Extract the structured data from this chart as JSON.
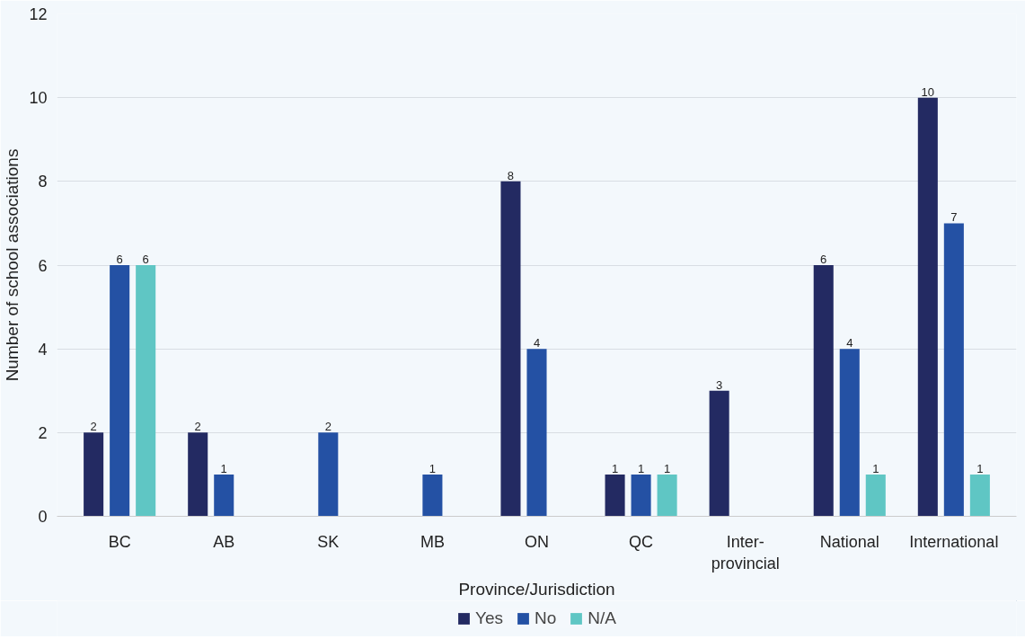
{
  "chart_data": {
    "type": "bar",
    "xlabel": "Province/Jurisdiction",
    "ylabel": "Number of school associations",
    "categories": [
      "BC",
      "AB",
      "SK",
      "MB",
      "ON",
      "QC",
      "Inter-\nprovincial",
      "National",
      "International"
    ],
    "series": [
      {
        "name": "Yes",
        "color": "#232a62",
        "values": [
          2,
          2,
          null,
          null,
          8,
          1,
          3,
          6,
          10
        ]
      },
      {
        "name": "No",
        "color": "#2451a4",
        "values": [
          6,
          1,
          2,
          1,
          4,
          1,
          null,
          4,
          7
        ]
      },
      {
        "name": "N/A",
        "color": "#5fc6c4",
        "values": [
          6,
          null,
          null,
          null,
          null,
          1,
          null,
          1,
          1
        ]
      }
    ],
    "ylim": [
      0,
      12
    ],
    "yticks": [
      0,
      2,
      4,
      6,
      8,
      10,
      12
    ],
    "grid": "y",
    "legend": "bottom",
    "data_labels": true
  }
}
